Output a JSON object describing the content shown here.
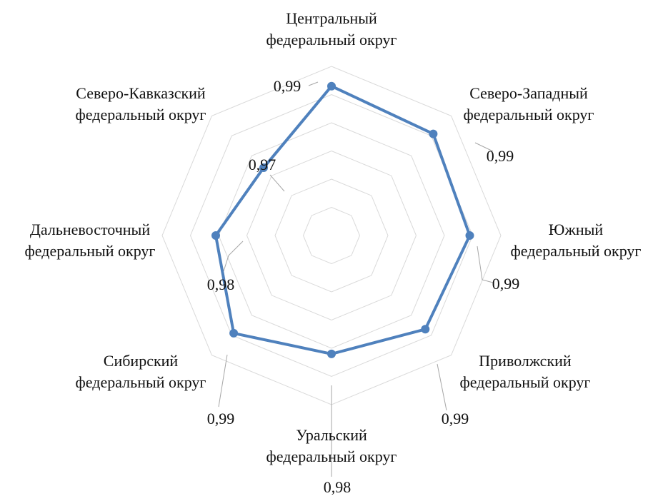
{
  "chart_data": {
    "type": "radar",
    "categories": [
      [
        "Центральный",
        "федеральный округ"
      ],
      [
        "Северо-Западный",
        "федеральный округ"
      ],
      [
        "Южный",
        "федеральный округ"
      ],
      [
        "Приволжский",
        "федеральный округ"
      ],
      [
        "Уральский",
        "федеральный округ"
      ],
      [
        "Сибирский",
        "федеральный округ"
      ],
      [
        "Дальневосточный",
        "федеральный округ"
      ],
      [
        "Северо-Кавказский",
        "федеральный округ"
      ]
    ],
    "series": [
      {
        "values": [
          0.993,
          0.991,
          0.989,
          0.987,
          0.982,
          0.989,
          0.981,
          0.974
        ],
        "labels": [
          "0,99",
          "0,99",
          "0,99",
          "0,99",
          "0,98",
          "0,99",
          "0,98",
          "0,97"
        ],
        "color": "#4f81bd"
      }
    ],
    "rlim": [
      0.94,
      1.0
    ],
    "rings": 6,
    "grid": true,
    "legend": false
  }
}
